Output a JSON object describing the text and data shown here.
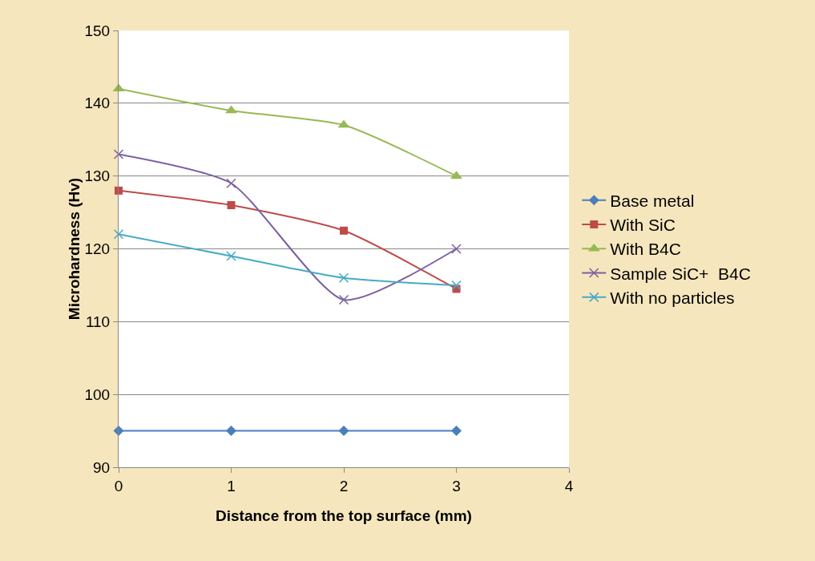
{
  "chart_data": {
    "type": "line",
    "xlabel": "Distance from the top surface (mm)",
    "ylabel": "Microhardness (Hv)",
    "x": [
      0,
      1,
      2,
      3
    ],
    "series": [
      {
        "name": "Base metal",
        "color": "#4a7ebb",
        "marker": "diamond",
        "values": [
          95,
          95,
          95,
          95
        ]
      },
      {
        "name": "With SiC",
        "color": "#be4b48",
        "marker": "square",
        "values": [
          128,
          126,
          122.5,
          114.5
        ]
      },
      {
        "name": "With B4C",
        "color": "#98b954",
        "marker": "triangle",
        "values": [
          142,
          139,
          137,
          130
        ]
      },
      {
        "name": "Sample SiC+  B4C",
        "color": "#7d60a0",
        "marker": "cross",
        "values": [
          133,
          129,
          113,
          120
        ]
      },
      {
        "name": "With no particles",
        "color": "#46aac5",
        "marker": "cross",
        "values": [
          122,
          119,
          116,
          115
        ]
      }
    ],
    "xlim": [
      0,
      4
    ],
    "xticks": [
      0,
      1,
      2,
      3,
      4
    ],
    "ylim": [
      90,
      150
    ],
    "yticks": [
      90,
      100,
      110,
      120,
      130,
      140,
      150
    ],
    "grid": "y",
    "legend": "right",
    "line_style": "solid"
  }
}
